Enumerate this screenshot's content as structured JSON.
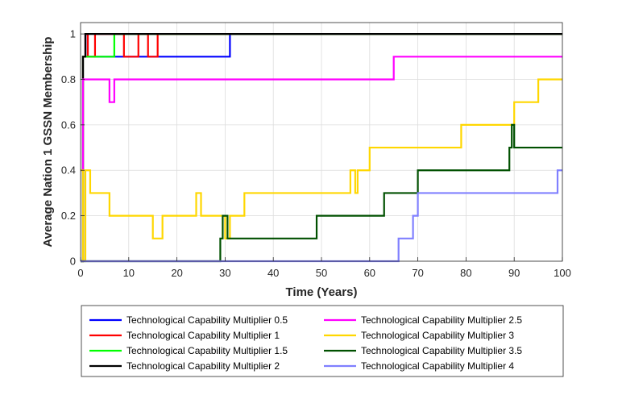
{
  "chart_data": {
    "type": "line",
    "step": true,
    "title": "",
    "xlabel": "Time (Years)",
    "ylabel": "Average Nation 1 GSSN Membership",
    "xlim": [
      0,
      100
    ],
    "ylim": [
      0,
      1.05
    ],
    "xticks": [
      "0",
      "10",
      "20",
      "30",
      "40",
      "50",
      "60",
      "70",
      "80",
      "90",
      "100"
    ],
    "yticks": [
      "0",
      "0.2",
      "0.4",
      "0.6",
      "0.8",
      "1"
    ],
    "grid": true,
    "legend_position": "bottom-outside",
    "legend_columns": 2,
    "series": [
      {
        "name": "Technological Capability Multiplier 0.5",
        "color": "#0000ff",
        "points": [
          [
            0,
            0
          ],
          [
            0.5,
            0
          ],
          [
            0.5,
            0.9
          ],
          [
            1,
            0.9
          ],
          [
            1,
            1
          ],
          [
            1.5,
            1
          ],
          [
            1.5,
            0.9
          ],
          [
            31,
            0.9
          ],
          [
            31,
            1
          ],
          [
            100,
            1
          ]
        ]
      },
      {
        "name": "Technological Capability Multiplier 1",
        "color": "#ff0000",
        "points": [
          [
            0,
            0
          ],
          [
            0.5,
            0
          ],
          [
            0.5,
            0.9
          ],
          [
            1,
            0.9
          ],
          [
            1,
            1
          ],
          [
            1.5,
            1
          ],
          [
            1.5,
            0.9
          ],
          [
            3,
            0.9
          ],
          [
            3,
            1
          ],
          [
            9,
            1
          ],
          [
            9,
            0.9
          ],
          [
            12,
            0.9
          ],
          [
            12,
            1
          ],
          [
            14,
            1
          ],
          [
            14,
            0.9
          ],
          [
            16,
            0.9
          ],
          [
            16,
            1
          ],
          [
            100,
            1
          ]
        ]
      },
      {
        "name": "Technological Capability Multiplier 1.5",
        "color": "#00ff00",
        "points": [
          [
            0,
            0
          ],
          [
            0.5,
            0
          ],
          [
            0.5,
            0.9
          ],
          [
            7,
            0.9
          ],
          [
            7,
            1
          ],
          [
            100,
            1
          ]
        ]
      },
      {
        "name": "Technological Capability Multiplier 2",
        "color": "#000000",
        "points": [
          [
            0,
            0
          ],
          [
            0.5,
            0
          ],
          [
            0.5,
            0.9
          ],
          [
            1,
            0.9
          ],
          [
            1,
            1
          ],
          [
            100,
            1
          ]
        ]
      },
      {
        "name": "Technological Capability Multiplier 2.5",
        "color": "#ff00ff",
        "points": [
          [
            0,
            0.4
          ],
          [
            0.5,
            0.4
          ],
          [
            0.5,
            0.8
          ],
          [
            6,
            0.8
          ],
          [
            6,
            0.7
          ],
          [
            7,
            0.7
          ],
          [
            7,
            0.8
          ],
          [
            65,
            0.8
          ],
          [
            65,
            0.9
          ],
          [
            100,
            0.9
          ]
        ]
      },
      {
        "name": "Technological Capability Multiplier 3",
        "color": "#ffd700",
        "points": [
          [
            0,
            0.4
          ],
          [
            0.5,
            0.4
          ],
          [
            0.5,
            0
          ],
          [
            1,
            0
          ],
          [
            1,
            0.4
          ],
          [
            2,
            0.4
          ],
          [
            2,
            0.3
          ],
          [
            6,
            0.3
          ],
          [
            6,
            0.2
          ],
          [
            15,
            0.2
          ],
          [
            15,
            0.1
          ],
          [
            17,
            0.1
          ],
          [
            17,
            0.2
          ],
          [
            24,
            0.2
          ],
          [
            24,
            0.3
          ],
          [
            25,
            0.3
          ],
          [
            25,
            0.2
          ],
          [
            30,
            0.2
          ],
          [
            30,
            0.1
          ],
          [
            31,
            0.1
          ],
          [
            31,
            0.2
          ],
          [
            34,
            0.2
          ],
          [
            34,
            0.3
          ],
          [
            56,
            0.3
          ],
          [
            56,
            0.4
          ],
          [
            57,
            0.4
          ],
          [
            57,
            0.3
          ],
          [
            57.5,
            0.3
          ],
          [
            57.5,
            0.4
          ],
          [
            60,
            0.4
          ],
          [
            60,
            0.5
          ],
          [
            79,
            0.5
          ],
          [
            79,
            0.6
          ],
          [
            90,
            0.6
          ],
          [
            90,
            0.7
          ],
          [
            95,
            0.7
          ],
          [
            95,
            0.8
          ],
          [
            100,
            0.8
          ]
        ]
      },
      {
        "name": "Technological Capability Multiplier 3.5",
        "color": "#005000",
        "points": [
          [
            0,
            0
          ],
          [
            29,
            0
          ],
          [
            29,
            0.1
          ],
          [
            29.5,
            0.1
          ],
          [
            29.5,
            0.2
          ],
          [
            30.5,
            0.2
          ],
          [
            30.5,
            0.1
          ],
          [
            49,
            0.1
          ],
          [
            49,
            0.2
          ],
          [
            63,
            0.2
          ],
          [
            63,
            0.3
          ],
          [
            70,
            0.3
          ],
          [
            70,
            0.4
          ],
          [
            89,
            0.4
          ],
          [
            89,
            0.5
          ],
          [
            89.5,
            0.5
          ],
          [
            89.5,
            0.6
          ],
          [
            90,
            0.6
          ],
          [
            90,
            0.5
          ],
          [
            100,
            0.5
          ]
        ]
      },
      {
        "name": "Technological Capability Multiplier 4",
        "color": "#8080ff",
        "points": [
          [
            0,
            0
          ],
          [
            66,
            0
          ],
          [
            66,
            0.1
          ],
          [
            69,
            0.1
          ],
          [
            69,
            0.2
          ],
          [
            70,
            0.2
          ],
          [
            70,
            0.3
          ],
          [
            99,
            0.3
          ],
          [
            99,
            0.4
          ],
          [
            100,
            0.4
          ]
        ]
      }
    ]
  }
}
